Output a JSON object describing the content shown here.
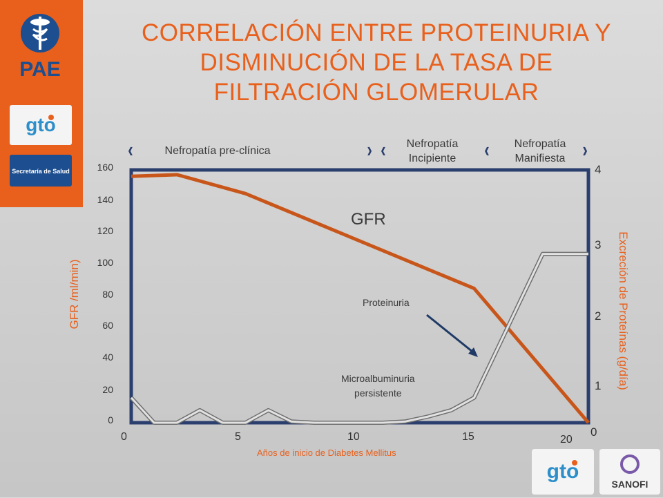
{
  "title_lines": [
    "CORRELACIÓN ENTRE PROTEINURIA Y",
    "DISMINUCIÓN DE LA TASA DE",
    "FILTRACIÓN GLOMERULAR"
  ],
  "logos": {
    "sidebar_pae": "PAE",
    "sidebar_gto": "gto",
    "sidebar_secretaria": "Secretaría de Salud",
    "footer_gto": "gto",
    "footer_sanofi": "SANOFI"
  },
  "phases": {
    "preclinica": "Nefropatía pre-clínica",
    "incipiente_1": "Nefropatía",
    "incipiente_2": "Incipiente",
    "manifiesta_1": "Nefropatía",
    "manifiesta_2": "Manifiesta"
  },
  "annotations": {
    "gfr": "GFR",
    "proteinuria": "Proteinuria",
    "micro_1": "Microalbuminuria",
    "micro_2": "persistente"
  },
  "colors": {
    "gfr_line": "#c8561a",
    "protein_line": "#9a9a9a",
    "axis_frame": "#2b3f6e",
    "accent": "#e8601c"
  },
  "chart_data": {
    "type": "line",
    "xlabel": "Años de inicio de Diabetes Mellitus",
    "ylabel_left": "GFR /ml/min)",
    "ylabel_right": "Excreción de Proteínas (g/día)",
    "x_ticks": [
      "0",
      "5",
      "10",
      "15",
      "20"
    ],
    "y_left_ticks": [
      "0",
      "20",
      "40",
      "60",
      "80",
      "100",
      "120",
      "140",
      "160"
    ],
    "y_right_ticks": [
      "0",
      "1",
      "2",
      "3",
      "4"
    ],
    "xlim": [
      0,
      20
    ],
    "ylim_left": [
      0,
      160
    ],
    "ylim_right": [
      0,
      4
    ],
    "series": [
      {
        "name": "GFR",
        "axis": "left",
        "x": [
          0,
          2,
          5,
          15,
          20
        ],
        "y": [
          156,
          157,
          145,
          85,
          0
        ]
      },
      {
        "name": "Proteinuria",
        "axis": "right",
        "x": [
          0,
          1,
          2,
          3,
          4,
          5,
          6,
          7,
          8,
          9,
          10,
          11,
          12,
          13,
          14,
          15,
          18,
          20
        ],
        "y": [
          0.4,
          0.0,
          0.0,
          0.2,
          0.0,
          0.0,
          0.2,
          0.02,
          0.0,
          0.0,
          0.0,
          0.0,
          0.02,
          0.1,
          0.2,
          0.4,
          2.7,
          2.7
        ]
      }
    ]
  }
}
